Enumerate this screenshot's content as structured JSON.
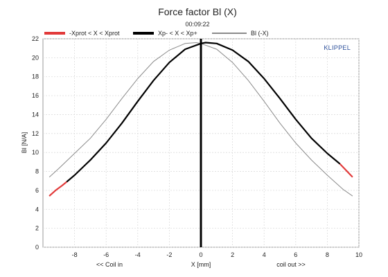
{
  "chart_data": {
    "type": "line",
    "title": "Force factor Bl (X)",
    "subtitle": "00:09:22",
    "brand": "KLIPPEL",
    "xlabel": "X [mm]",
    "xlabel_left": "<< Coil in",
    "xlabel_right": "coil out >>",
    "ylabel": "Bl [N/A]",
    "xlim": [
      -10,
      10
    ],
    "ylim": [
      0,
      22
    ],
    "xticks": [
      -8,
      -6,
      -4,
      -2,
      0,
      2,
      4,
      6,
      8,
      10
    ],
    "yticks": [
      0,
      2,
      4,
      6,
      8,
      10,
      12,
      14,
      16,
      18,
      20,
      22
    ],
    "grid": true,
    "legend_position": "top",
    "colors": {
      "prot": "#e23a3a",
      "main": "#000000",
      "mirror": "#8a8a8a",
      "zero_line": "#000000"
    },
    "series": [
      {
        "name": "-Xprot < X < Xprot",
        "color": "#e23a3a",
        "segments": [
          {
            "x": [
              -9.6,
              -9.2,
              -8.8,
              -8.5
            ],
            "y": [
              5.4,
              6.0,
              6.5,
              6.9
            ]
          },
          {
            "x": [
              8.8,
              9.2,
              9.6
            ],
            "y": [
              8.8,
              8.1,
              7.4
            ]
          }
        ]
      },
      {
        "name": "Xp- < X < Xp+",
        "color": "#000000",
        "x": [
          -8.5,
          -8.0,
          -7.0,
          -6.0,
          -5.0,
          -4.0,
          -3.0,
          -2.0,
          -1.0,
          0.0,
          0.3,
          1.0,
          2.0,
          3.0,
          4.0,
          5.0,
          6.0,
          7.0,
          8.0,
          8.8
        ],
        "y": [
          6.9,
          7.6,
          9.2,
          11.0,
          13.1,
          15.4,
          17.6,
          19.5,
          20.9,
          21.5,
          21.6,
          21.5,
          20.8,
          19.6,
          17.8,
          15.7,
          13.5,
          11.5,
          9.9,
          8.8
        ]
      },
      {
        "name": "Bl (-X)",
        "color": "#8a8a8a",
        "x": [
          -9.6,
          -9.0,
          -8.0,
          -7.0,
          -6.0,
          -5.0,
          -4.0,
          -3.0,
          -2.0,
          -1.0,
          -0.3,
          0.0,
          1.0,
          2.0,
          3.0,
          4.0,
          5.0,
          6.0,
          7.0,
          8.0,
          9.0,
          9.6
        ],
        "y": [
          7.4,
          8.3,
          9.9,
          11.5,
          13.5,
          15.7,
          17.8,
          19.6,
          20.8,
          21.5,
          21.6,
          21.5,
          20.9,
          19.5,
          17.6,
          15.4,
          13.1,
          11.0,
          9.2,
          7.6,
          6.1,
          5.4
        ]
      }
    ]
  }
}
